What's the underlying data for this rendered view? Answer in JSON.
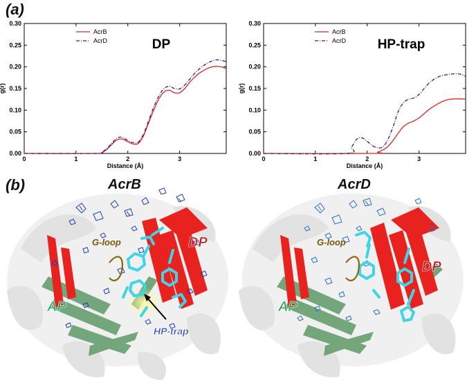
{
  "panel_a_label": "(a)",
  "panel_b_label": "(b)",
  "chart_data": [
    {
      "type": "line",
      "title": "DP",
      "xlabel": "Distance (Å)",
      "ylabel": "g(r)",
      "xlim": [
        0,
        3.9
      ],
      "ylim": [
        0,
        0.3
      ],
      "xticks": [
        "0",
        "1",
        "2",
        "3"
      ],
      "yticks": [
        "0.00",
        "0.05",
        "0.10",
        "0.15",
        "0.20",
        "0.25",
        "0.30"
      ],
      "legend_position": "top-left",
      "grid": false,
      "series": [
        {
          "name": "AcrB",
          "color": "#d62728",
          "dash": "solid",
          "x": [
            0,
            1.4,
            1.5,
            1.6,
            1.7,
            1.8,
            1.9,
            2.0,
            2.1,
            2.2,
            2.3,
            2.4,
            2.5,
            2.6,
            2.7,
            2.8,
            2.9,
            3.0,
            3.1,
            3.2,
            3.3,
            3.4,
            3.5,
            3.6,
            3.7,
            3.8,
            3.9
          ],
          "y": [
            0,
            0,
            0.002,
            0.01,
            0.022,
            0.032,
            0.033,
            0.027,
            0.022,
            0.023,
            0.04,
            0.07,
            0.1,
            0.126,
            0.142,
            0.146,
            0.14,
            0.14,
            0.15,
            0.165,
            0.177,
            0.187,
            0.194,
            0.199,
            0.201,
            0.2,
            0.196
          ]
        },
        {
          "name": "AcrD",
          "color": "#3b1a6e",
          "dash": "dashdot",
          "x": [
            0,
            1.4,
            1.5,
            1.6,
            1.7,
            1.8,
            1.9,
            2.0,
            2.1,
            2.2,
            2.3,
            2.4,
            2.5,
            2.6,
            2.7,
            2.8,
            2.9,
            3.0,
            3.1,
            3.2,
            3.3,
            3.4,
            3.5,
            3.6,
            3.7,
            3.8,
            3.9
          ],
          "y": [
            0,
            0,
            0.003,
            0.012,
            0.025,
            0.036,
            0.037,
            0.03,
            0.025,
            0.026,
            0.044,
            0.075,
            0.107,
            0.133,
            0.15,
            0.155,
            0.15,
            0.149,
            0.158,
            0.172,
            0.186,
            0.197,
            0.206,
            0.212,
            0.216,
            0.215,
            0.212
          ]
        }
      ]
    },
    {
      "type": "line",
      "title": "HP-trap",
      "xlabel": "Distance (Å)",
      "ylabel": "g(r)",
      "xlim": [
        0,
        3.9
      ],
      "ylim": [
        0,
        0.3
      ],
      "xticks": [
        "0",
        "1",
        "2",
        "3"
      ],
      "yticks": [
        "0.00",
        "0.05",
        "0.10",
        "0.15",
        "0.20",
        "0.25",
        "0.30"
      ],
      "legend_position": "top-left",
      "grid": false,
      "series": [
        {
          "name": "AcrB",
          "color": "#d62728",
          "dash": "solid",
          "x": [
            0,
            2.1,
            2.2,
            2.3,
            2.4,
            2.5,
            2.6,
            2.7,
            2.8,
            2.9,
            3.0,
            3.1,
            3.2,
            3.3,
            3.4,
            3.5,
            3.6,
            3.7,
            3.8,
            3.9
          ],
          "y": [
            0,
            0,
            0.003,
            0.008,
            0.016,
            0.03,
            0.047,
            0.062,
            0.07,
            0.075,
            0.082,
            0.092,
            0.102,
            0.11,
            0.117,
            0.122,
            0.125,
            0.126,
            0.126,
            0.125
          ]
        },
        {
          "name": "AcrD",
          "color": "#3b1a6e",
          "dash": "dashdot",
          "x": [
            0,
            1.6,
            1.7,
            1.8,
            1.9,
            2.0,
            2.1,
            2.2,
            2.3,
            2.4,
            2.5,
            2.6,
            2.7,
            2.8,
            2.9,
            3.0,
            3.1,
            3.2,
            3.3,
            3.4,
            3.5,
            3.6,
            3.7,
            3.8,
            3.9
          ],
          "y": [
            0,
            0,
            0.015,
            0.033,
            0.036,
            0.028,
            0.018,
            0.013,
            0.015,
            0.032,
            0.062,
            0.097,
            0.117,
            0.125,
            0.128,
            0.136,
            0.15,
            0.163,
            0.172,
            0.178,
            0.181,
            0.183,
            0.184,
            0.183,
            0.178
          ]
        }
      ]
    }
  ],
  "structures": [
    {
      "title": "AcrB",
      "labels": {
        "dp": "DP",
        "ap": "AP",
        "gloop": "G-loop",
        "hptrap": "HP-trap"
      }
    },
    {
      "title": "AcrD",
      "labels": {
        "dp": "DP",
        "ap": "AP",
        "gloop": "G-loop"
      }
    }
  ],
  "colors": {
    "sheet_red": "#e8231f",
    "sheet_green": "#5e9a66",
    "mesh_blue": "#1f3db5",
    "mesh_blue_light": "#2a6fc9",
    "ligand_cyan": "#3fd4e6",
    "gloop_brown": "#8a6a10",
    "label_dp": "#c0151a",
    "label_ap": "#2aa15a",
    "label_hptrap": "#2b3da8",
    "gloop_text": "#7a5a0a"
  }
}
